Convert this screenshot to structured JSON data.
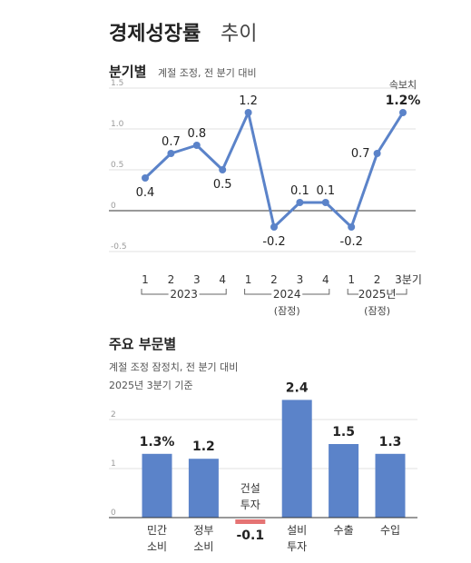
{
  "title": {
    "main": "경제성장률",
    "sub": "추이"
  },
  "colors": {
    "line": "#5b83c9",
    "bar": "#5b83c9",
    "negative": "#e57373",
    "axis": "#333333",
    "grid": "#e2e2e2"
  },
  "chart_data": [
    {
      "type": "line",
      "title": "분기별",
      "subtitle": "계절 조정, 전 분기 대비",
      "x": [
        "1",
        "2",
        "3",
        "4",
        "1",
        "2",
        "3",
        "4",
        "1",
        "2",
        "3분기"
      ],
      "groups": [
        {
          "label": "2023",
          "note": ""
        },
        {
          "label": "2024",
          "note": "(잠정)"
        },
        {
          "label": "2025년",
          "note": "(잠정)"
        }
      ],
      "values": [
        0.4,
        0.7,
        0.8,
        0.5,
        1.2,
        -0.2,
        0.1,
        0.1,
        -0.2,
        0.7,
        1.2
      ],
      "labels": [
        "0.4",
        "0.7",
        "0.8",
        "0.5",
        "1.2",
        "-0.2",
        "0.1",
        "0.1",
        "-0.2",
        "0.7",
        "1.2%"
      ],
      "annotation": "속보치",
      "yticks": [
        "1.5",
        "1.0",
        "0.5",
        "0",
        "-0.5"
      ],
      "ylim": [
        -0.5,
        1.5
      ],
      "grid": true
    },
    {
      "type": "bar",
      "title": "주요 부문별",
      "subtitle": "계절 조정 잠정치, 전 분기 대비",
      "subtitle2": "2025년 3분기 기준",
      "categories": [
        [
          "민간",
          "소비"
        ],
        [
          "정부",
          "소비"
        ],
        [
          "건설",
          "투자"
        ],
        [
          "설비",
          "투자"
        ],
        [
          "수출"
        ],
        [
          "수입"
        ]
      ],
      "values": [
        1.3,
        1.2,
        -0.1,
        2.4,
        1.5,
        1.3
      ],
      "labels": [
        "1.3%",
        "1.2",
        "-0.1",
        "2.4",
        "1.5",
        "1.3"
      ],
      "yticks": [
        "2",
        "1",
        "0"
      ],
      "ylim": [
        0,
        2.5
      ],
      "grid": true
    }
  ]
}
